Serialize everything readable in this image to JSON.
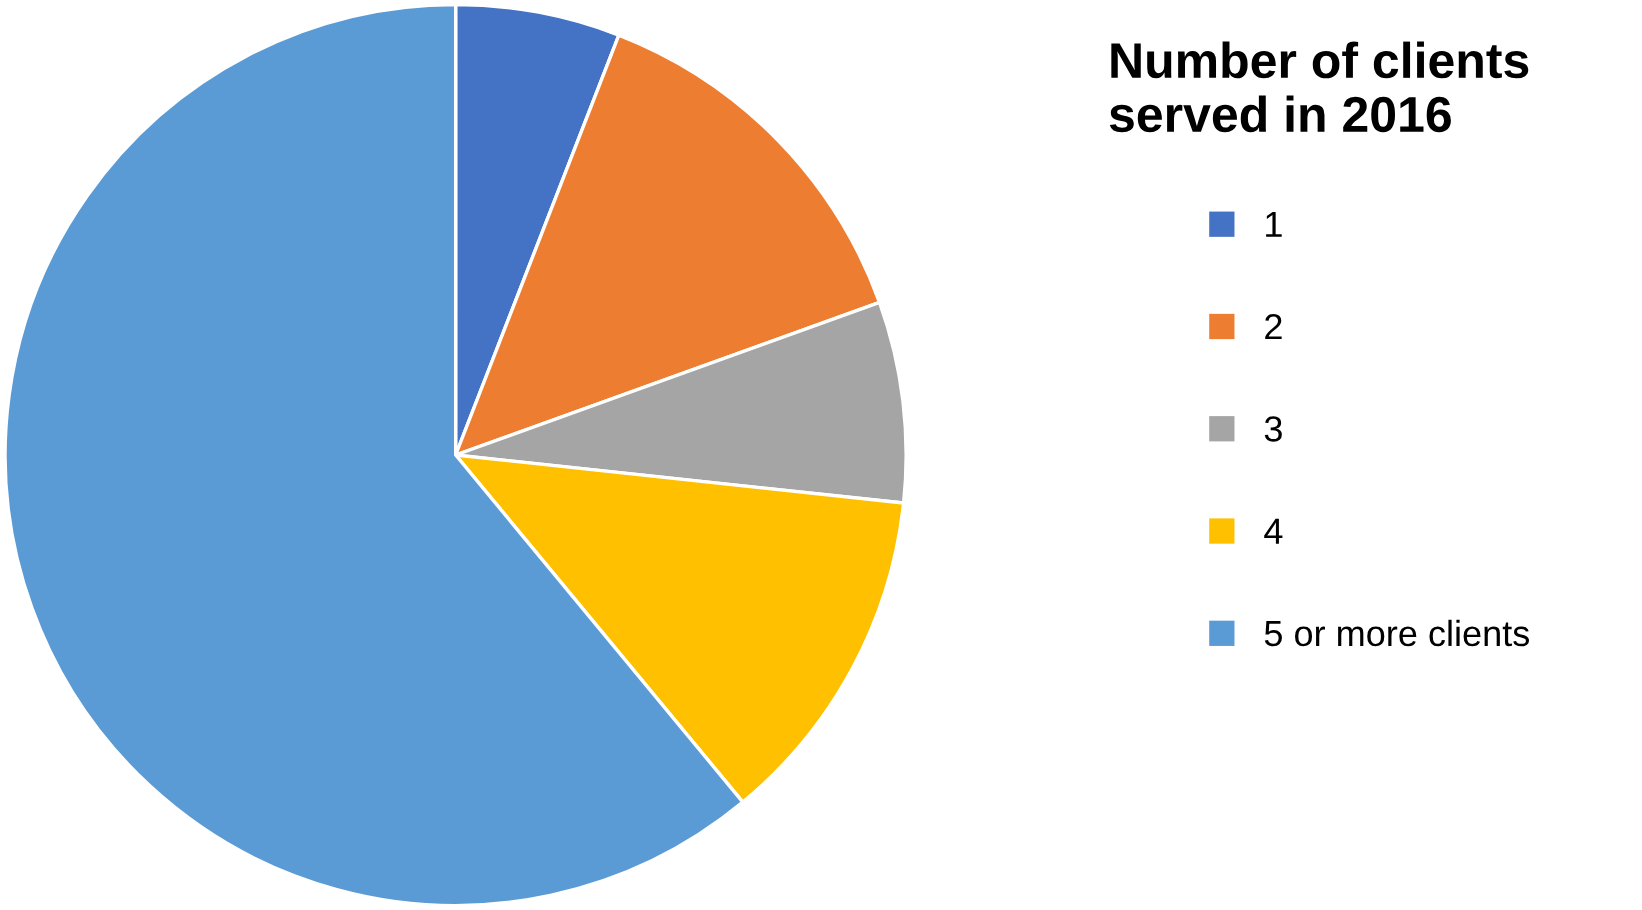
{
  "chart_data": {
    "type": "pie",
    "legend_title": "Number of clients\nserved in 2016",
    "legend": "right",
    "categories": [
      "1",
      "2",
      "3",
      "4",
      "5 or more clients"
    ],
    "values": [
      5.9,
      13.6,
      7.2,
      12.3,
      61.0
    ],
    "colors": [
      "#4472c4",
      "#ed7d31",
      "#a5a5a5",
      "#ffc000",
      "#5b9bd5"
    ]
  }
}
